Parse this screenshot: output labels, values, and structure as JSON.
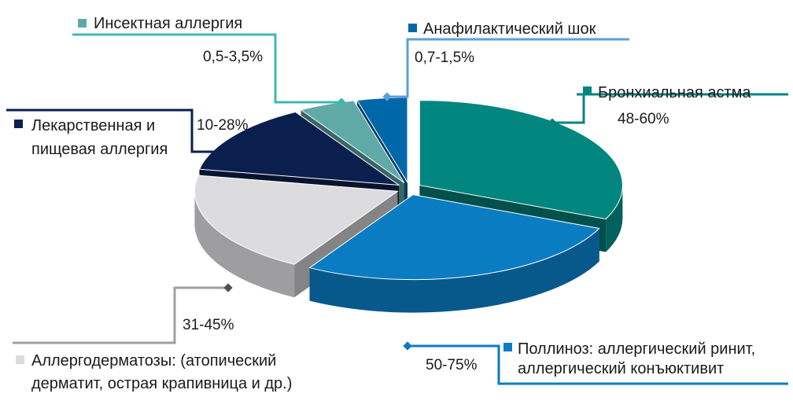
{
  "chart_data": {
    "type": "pie",
    "title": "",
    "slices": [
      {
        "name": "Бронхиальная астма",
        "range": "48-60%",
        "value": 31.5,
        "color": "#00857f"
      },
      {
        "name": "Поллиноз: аллергический ринит, аллергический конъюктивит",
        "lines": [
          "Поллиноз: аллергический ринит,",
          "аллергический конъюктивит"
        ],
        "range": "50-75%",
        "value": 27,
        "color": "#0a7cc2"
      },
      {
        "name": "Аллергодерматозы: (атопический дерматит, острая крапивница и др.)",
        "lines": [
          "Аллергодерматозы: (атопический",
          "дерматит, острая крапивница и др.)"
        ],
        "range": "31-45%",
        "value": 19.5,
        "color": "#dcdcde"
      },
      {
        "name": "Лекарственная и пищевая аллергия",
        "lines": [
          "Лекарственная и",
          "пищевая аллергия"
        ],
        "range": "10-28%",
        "value": 13.5,
        "color": "#0b1f4e"
      },
      {
        "name": "Инсектная аллергия",
        "range": "0,5-3,5%",
        "value": 4.5,
        "color": "#5fa9a7"
      },
      {
        "name": "Анафилактический шок",
        "range": "0,7-1,5%",
        "value": 4,
        "color": "#0067a8"
      }
    ]
  }
}
